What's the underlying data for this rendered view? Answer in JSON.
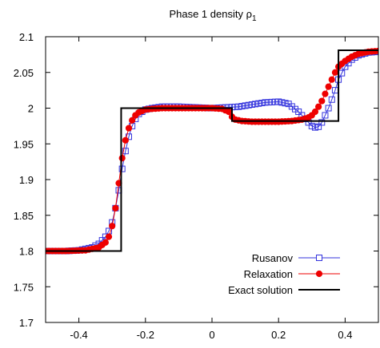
{
  "chart_data": {
    "type": "line",
    "title": "Phase 1 density ρ",
    "title_subscript": "1",
    "xlim": [
      -0.5,
      0.5
    ],
    "ylim": [
      1.7,
      2.1
    ],
    "xticks": [
      -0.4,
      -0.2,
      0,
      0.2,
      0.4
    ],
    "xtick_labels": [
      "-0.4",
      "-0.2",
      "0",
      "0.2",
      "0.4"
    ],
    "yticks": [
      1.7,
      1.75,
      1.8,
      1.85,
      1.9,
      1.95,
      2.0,
      2.05,
      2.1
    ],
    "ytick_labels": [
      "1.7",
      "1.75",
      "1.8",
      "1.85",
      "1.9",
      "1.95",
      "2",
      "2.05",
      "2.1"
    ],
    "grid": false,
    "legend_position": "bottom-right",
    "series": [
      {
        "name": "Rusanov",
        "color": "#3333dd",
        "marker": "square-open",
        "x": [
          -0.5,
          -0.44,
          -0.4,
          -0.36,
          -0.34,
          -0.32,
          -0.31,
          -0.3,
          -0.29,
          -0.28,
          -0.27,
          -0.26,
          -0.25,
          -0.24,
          -0.23,
          -0.22,
          -0.2,
          -0.18,
          -0.15,
          -0.1,
          -0.05,
          0,
          0.04,
          0.08,
          0.12,
          0.16,
          0.2,
          0.23,
          0.26,
          0.28,
          0.3,
          0.31,
          0.32,
          0.33,
          0.34,
          0.35,
          0.36,
          0.37,
          0.38,
          0.4,
          0.42,
          0.44,
          0.47,
          0.5
        ],
        "y": [
          1.8,
          1.8,
          1.801,
          1.805,
          1.81,
          1.82,
          1.828,
          1.84,
          1.86,
          1.885,
          1.915,
          1.94,
          1.96,
          1.975,
          1.985,
          1.992,
          1.998,
          2.0,
          2.002,
          2.002,
          2.001,
          2.0,
          2.001,
          2.002,
          2.005,
          2.008,
          2.009,
          2.006,
          1.995,
          1.985,
          1.975,
          1.973,
          1.974,
          1.98,
          1.99,
          2.0,
          2.012,
          2.025,
          2.04,
          2.058,
          2.068,
          2.074,
          2.078,
          2.079
        ]
      },
      {
        "name": "Relaxation",
        "color": "#ee0000",
        "marker": "filled-circle",
        "x": [
          -0.5,
          -0.44,
          -0.38,
          -0.34,
          -0.32,
          -0.31,
          -0.3,
          -0.29,
          -0.28,
          -0.27,
          -0.26,
          -0.25,
          -0.24,
          -0.23,
          -0.22,
          -0.2,
          -0.18,
          -0.15,
          -0.1,
          -0.05,
          0,
          0.03,
          0.05,
          0.06,
          0.07,
          0.09,
          0.12,
          0.16,
          0.2,
          0.24,
          0.27,
          0.29,
          0.3,
          0.31,
          0.32,
          0.33,
          0.34,
          0.35,
          0.36,
          0.37,
          0.38,
          0.4,
          0.42,
          0.44,
          0.47,
          0.5
        ],
        "y": [
          1.8,
          1.8,
          1.801,
          1.805,
          1.812,
          1.82,
          1.835,
          1.86,
          1.895,
          1.93,
          1.955,
          1.972,
          1.983,
          1.99,
          1.994,
          1.998,
          1.999,
          2.0,
          2.0,
          2.0,
          2.0,
          1.999,
          1.995,
          1.988,
          1.984,
          1.982,
          1.981,
          1.981,
          1.981,
          1.982,
          1.984,
          1.987,
          1.99,
          1.995,
          2.002,
          2.01,
          2.02,
          2.03,
          2.04,
          2.05,
          2.058,
          2.066,
          2.072,
          2.076,
          2.079,
          2.08
        ]
      },
      {
        "name": "Exact solution",
        "color": "#000000",
        "marker": "none",
        "x": [
          -0.5,
          -0.273,
          -0.273,
          0.06,
          0.06,
          0.38,
          0.38,
          0.5
        ],
        "y": [
          1.8,
          1.8,
          2.0,
          2.0,
          1.982,
          1.982,
          2.081,
          2.081
        ]
      }
    ]
  }
}
